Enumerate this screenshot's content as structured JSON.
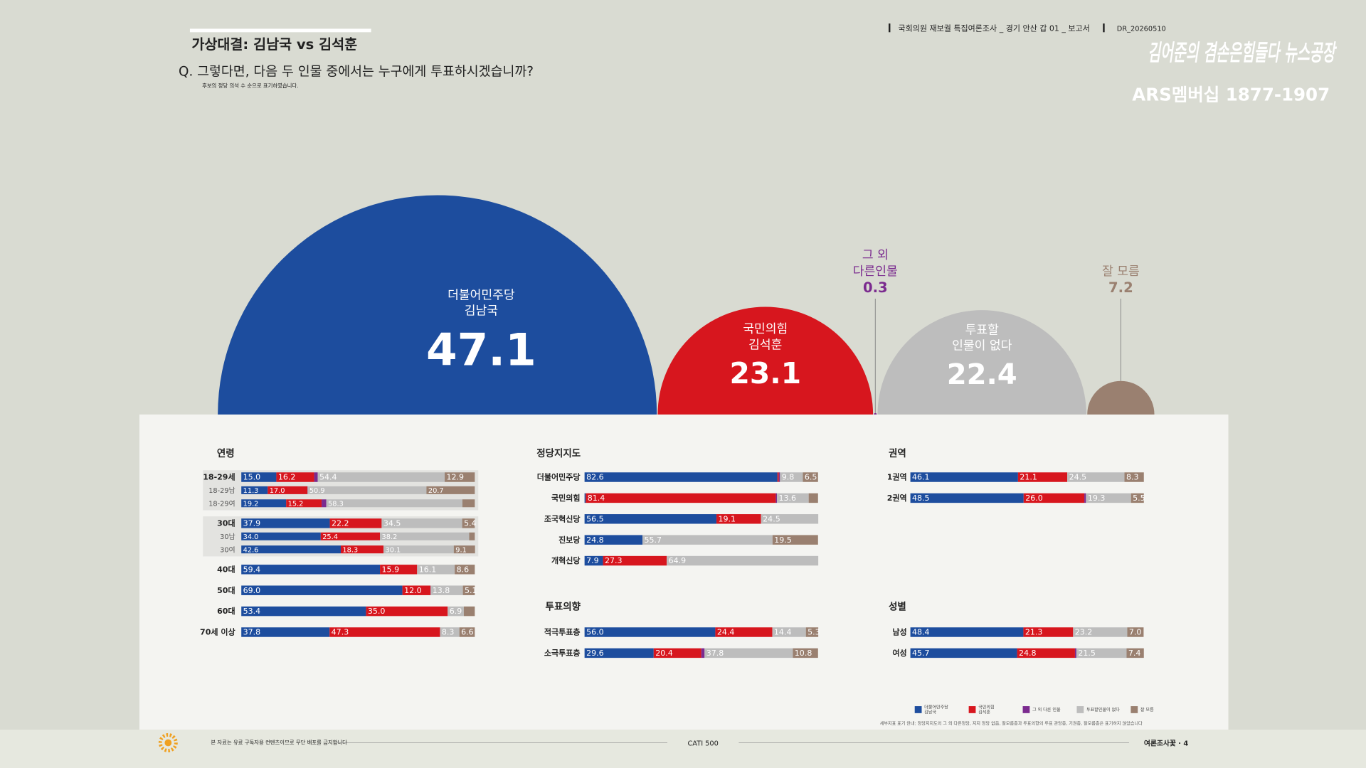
{
  "header": {
    "title": "가상대결: 김남국 vs 김석훈",
    "question": "Q. 그렇다면, 다음 두 인물 중에서는 누구에게 투표하시겠습니까?",
    "note": "후보의 정당 의석 수 순으로 표기하였습니다.",
    "report": "국회의원 재보궐 특집여론조사 _ 경기 안산 갑 01 _ 보고서",
    "code": "DR_20260510",
    "brand": "김어준의 겸손은힘들다 뉴스공장",
    "phone": "ARS멤버십 1877-1907"
  },
  "chart_data": [
    {
      "type": "semicircle",
      "categories": [
        [
          "더불어민주당",
          "김남국"
        ],
        [
          "국민의힘",
          "김석훈"
        ],
        [
          "그 외",
          "다른인물"
        ],
        [
          "투표할",
          "인물이 없다"
        ],
        [
          "잘 모름"
        ]
      ],
      "values": [
        47.1,
        23.1,
        0.3,
        22.4,
        7.2
      ],
      "colors": [
        "#1d4d9e",
        "#d7161e",
        "#7b2b8f",
        "#bdbdbd",
        "#9a8070"
      ]
    },
    {
      "type": "stacked-bar",
      "legend": [
        [
          "더불어민주당",
          "김남국"
        ],
        [
          "국민의힘",
          "김석훈"
        ],
        [
          "그 외 다른 인물"
        ],
        [
          "투표할인물이 없다"
        ],
        [
          "잘 모름"
        ]
      ],
      "colors": [
        "#1d4d9e",
        "#d7161e",
        "#7b2b8f",
        "#bdbdbd",
        "#9a8070"
      ],
      "note": "세부지표 표기 안내: 정당지지도의 그 외 다른정당, 지지 정당 없음, 잘모름층과 투표의향의 투표 관망층, 기권층, 잘모름층은 표기하지 않았습니다",
      "groups": [
        {
          "title": "연령",
          "categories": [
            "18-29세",
            "18-29남",
            "18-29여",
            "30대",
            "30남",
            "30여",
            "40대",
            "50대",
            "60대",
            "70세 이상"
          ],
          "sub": [
            false,
            true,
            true,
            false,
            true,
            true,
            false,
            false,
            false,
            false
          ],
          "series": [
            {
              "values": [
                15.0,
                11.3,
                19.2,
                37.9,
                34.0,
                42.6,
                59.4,
                69.0,
                53.4,
                37.8
              ],
              "value_labels": [
                "15.0",
                "11.3",
                "19.2",
                "37.9",
                "34.0",
                "42.6",
                "59.4",
                "69.0",
                "53.4",
                "37.8"
              ]
            },
            {
              "values": [
                16.2,
                17.0,
                15.2,
                22.2,
                25.4,
                18.3,
                15.9,
                12.0,
                35.0,
                47.3
              ],
              "value_labels": [
                "16.2",
                "17.0",
                "15.2",
                "22.2",
                "25.4",
                "18.3",
                "15.9",
                "12.0",
                "35.0",
                "47.3"
              ]
            },
            {
              "values": [
                1.5,
                0.1,
                2.0,
                0,
                0,
                0,
                0,
                0.1,
                0,
                0
              ],
              "value_labels": [
                null,
                null,
                null,
                null,
                null,
                null,
                null,
                null,
                null,
                null
              ]
            },
            {
              "values": [
                54.4,
                50.9,
                58.3,
                34.5,
                38.2,
                30.1,
                16.1,
                13.8,
                6.9,
                8.3
              ],
              "value_labels": [
                "54.4",
                "50.9",
                "58.3",
                "34.5",
                "38.2",
                "30.1",
                "16.1",
                "13.8",
                "6.9",
                "8.3"
              ]
            },
            {
              "values": [
                12.9,
                20.7,
                5.3,
                5.4,
                2.4,
                9.1,
                8.6,
                5.1,
                4.7,
                6.6
              ],
              "value_labels": [
                "12.9",
                "20.7",
                null,
                "5.4",
                null,
                "9.1",
                "8.6",
                "5.1",
                null,
                "6.6"
              ]
            }
          ]
        },
        {
          "title": "정당지지도",
          "categories": [
            "더불어민주당",
            "국민의힘",
            "조국혁신당",
            "진보당",
            "개혁신당"
          ],
          "series": [
            {
              "values": [
                82.6,
                0.5,
                56.5,
                24.8,
                7.9
              ],
              "value_labels": [
                "82.6",
                null,
                "56.5",
                "24.8",
                "7.9"
              ]
            },
            {
              "values": [
                0.6,
                81.4,
                19.1,
                0,
                27.3
              ],
              "value_labels": [
                null,
                "81.4",
                "19.1",
                null,
                "27.3"
              ]
            },
            {
              "values": [
                0.5,
                0.5,
                0,
                0,
                0
              ],
              "value_labels": [
                null,
                null,
                null,
                null,
                null
              ]
            },
            {
              "values": [
                9.8,
                13.6,
                24.5,
                55.7,
                64.9
              ],
              "value_labels": [
                "9.8",
                "13.6",
                "24.5",
                "55.7",
                "64.9"
              ]
            },
            {
              "values": [
                6.5,
                4.0,
                0,
                19.5,
                0
              ],
              "value_labels": [
                "6.5",
                null,
                null,
                "19.5",
                null
              ]
            }
          ]
        },
        {
          "title": "투표의향",
          "categories": [
            "적극투표층",
            "소극투표층"
          ],
          "series": [
            {
              "values": [
                56.0,
                29.6
              ],
              "value_labels": [
                "56.0",
                "29.6"
              ]
            },
            {
              "values": [
                24.4,
                20.4
              ],
              "value_labels": [
                "24.4",
                "20.4"
              ]
            },
            {
              "values": [
                0,
                1.4
              ],
              "value_labels": [
                null,
                null
              ]
            },
            {
              "values": [
                14.4,
                37.8
              ],
              "value_labels": [
                "14.4",
                "37.8"
              ]
            },
            {
              "values": [
                5.3,
                10.8
              ],
              "value_labels": [
                "5.3",
                "10.8"
              ]
            }
          ]
        },
        {
          "title": "권역",
          "categories": [
            "1권역",
            "2권역"
          ],
          "series": [
            {
              "values": [
                46.1,
                48.5
              ],
              "value_labels": [
                "46.1",
                "48.5"
              ]
            },
            {
              "values": [
                21.1,
                26.0
              ],
              "value_labels": [
                "21.1",
                "26.0"
              ]
            },
            {
              "values": [
                0,
                0.7
              ],
              "value_labels": [
                null,
                null
              ]
            },
            {
              "values": [
                24.5,
                19.3
              ],
              "value_labels": [
                "24.5",
                "19.3"
              ]
            },
            {
              "values": [
                8.3,
                5.5
              ],
              "value_labels": [
                "8.3",
                "5.5"
              ]
            }
          ]
        },
        {
          "title": "성별",
          "categories": [
            "남성",
            "여성"
          ],
          "series": [
            {
              "values": [
                48.4,
                45.7
              ],
              "value_labels": [
                "48.4",
                "45.7"
              ]
            },
            {
              "values": [
                21.3,
                24.8
              ],
              "value_labels": [
                "21.3",
                "24.8"
              ]
            },
            {
              "values": [
                0,
                0.6
              ],
              "value_labels": [
                null,
                null
              ]
            },
            {
              "values": [
                23.2,
                21.5
              ],
              "value_labels": [
                "23.2",
                "21.5"
              ]
            },
            {
              "values": [
                7.0,
                7.4
              ],
              "value_labels": [
                "7.0",
                "7.4"
              ]
            }
          ]
        }
      ]
    }
  ],
  "footer": {
    "notice": "본 자료는 유료 구독자용 컨텐츠이므로 무단 배포를 금지합니다",
    "method": "CATI 500",
    "page": "여론조사꽃 · 4"
  }
}
